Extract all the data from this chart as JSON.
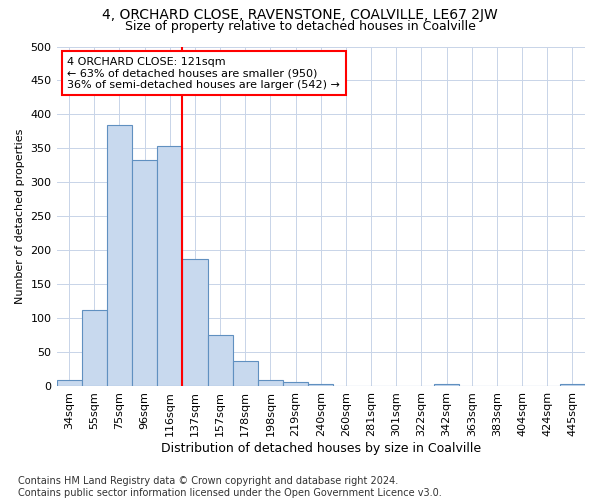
{
  "title": "4, ORCHARD CLOSE, RAVENSTONE, COALVILLE, LE67 2JW",
  "subtitle": "Size of property relative to detached houses in Coalville",
  "xlabel": "Distribution of detached houses by size in Coalville",
  "ylabel": "Number of detached properties",
  "bar_categories": [
    "34sqm",
    "55sqm",
    "75sqm",
    "96sqm",
    "116sqm",
    "137sqm",
    "157sqm",
    "178sqm",
    "198sqm",
    "219sqm",
    "240sqm",
    "260sqm",
    "281sqm",
    "301sqm",
    "322sqm",
    "342sqm",
    "363sqm",
    "383sqm",
    "404sqm",
    "424sqm",
    "445sqm"
  ],
  "bar_values": [
    10,
    112,
    385,
    333,
    353,
    187,
    76,
    38,
    10,
    6,
    4,
    0,
    0,
    0,
    0,
    4,
    0,
    0,
    0,
    0,
    4
  ],
  "bar_color": "#c8d9ee",
  "bar_edge_color": "#6090c0",
  "vline_color": "red",
  "annotation_text": "4 ORCHARD CLOSE: 121sqm\n← 63% of detached houses are smaller (950)\n36% of semi-detached houses are larger (542) →",
  "annotation_box_color": "white",
  "annotation_box_edge": "red",
  "ylim": [
    0,
    500
  ],
  "yticks": [
    0,
    50,
    100,
    150,
    200,
    250,
    300,
    350,
    400,
    450,
    500
  ],
  "footnote": "Contains HM Land Registry data © Crown copyright and database right 2024.\nContains public sector information licensed under the Open Government Licence v3.0.",
  "plot_bg_color": "#ffffff",
  "fig_bg_color": "#ffffff",
  "grid_color": "#c8d4e8",
  "title_fontsize": 10,
  "subtitle_fontsize": 9,
  "annotation_fontsize": 8,
  "footnote_fontsize": 7,
  "ylabel_fontsize": 8,
  "xlabel_fontsize": 9,
  "tick_fontsize": 8
}
